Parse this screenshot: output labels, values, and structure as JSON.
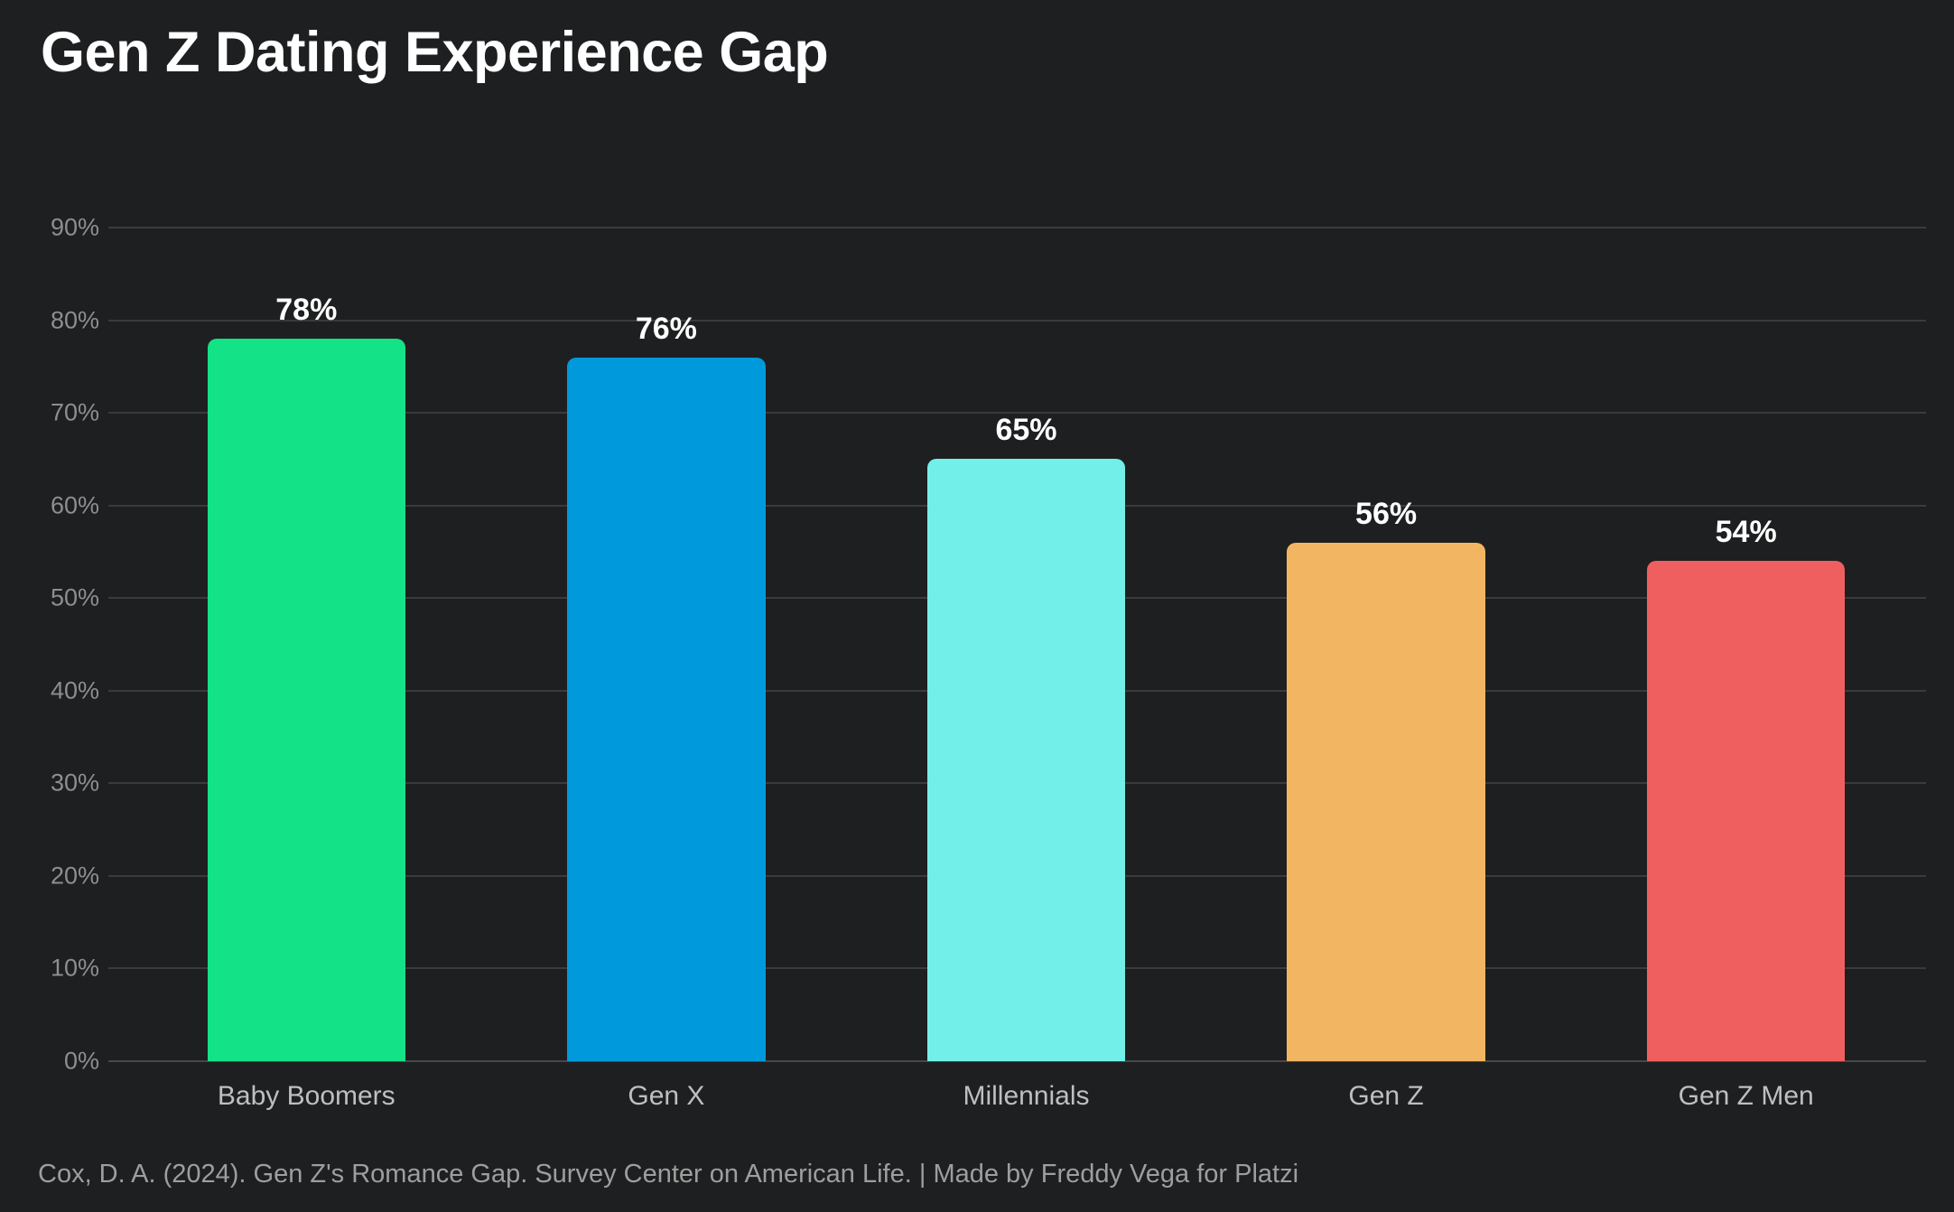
{
  "page": {
    "title": "Gen Z Dating Experience Gap",
    "footer": "Cox, D. A. (2024). Gen Z's Romance Gap. Survey Center on American Life. | Made by Freddy Vega for Platzi"
  },
  "colors": {
    "background": "#1E1F20",
    "title": "#FFFFFF",
    "gridline": "#3A3B3D",
    "baseline": "#47484A",
    "ytick_label": "#8E8E92",
    "category_label": "#BFBFBF",
    "value_label": "#FFFFFF",
    "footer": "#9E9E9E"
  },
  "chart_data": {
    "type": "bar",
    "title": "Gen Z Dating Experience Gap",
    "categories": [
      "Baby Boomers",
      "Gen X",
      "Millennials",
      "Gen Z",
      "Gen Z Men"
    ],
    "values": [
      78,
      76,
      65,
      56,
      54
    ],
    "value_labels": [
      "78%",
      "76%",
      "65%",
      "56%",
      "54%"
    ],
    "bar_colors": [
      "#13E287",
      "#0099DC",
      "#73EFE9",
      "#F2B662",
      "#F05F5F"
    ],
    "xlabel": "",
    "ylabel": "",
    "ylim": [
      0,
      90
    ],
    "ytick_step": 10,
    "ytick_labels": [
      "0%",
      "10%",
      "20%",
      "30%",
      "40%",
      "50%",
      "60%",
      "70%",
      "80%",
      "90%"
    ],
    "grid": true,
    "legend": false,
    "background": "dark",
    "source_note": "Cox, D. A. (2024). Gen Z's Romance Gap. Survey Center on American Life. | Made by Freddy Vega for Platzi"
  }
}
